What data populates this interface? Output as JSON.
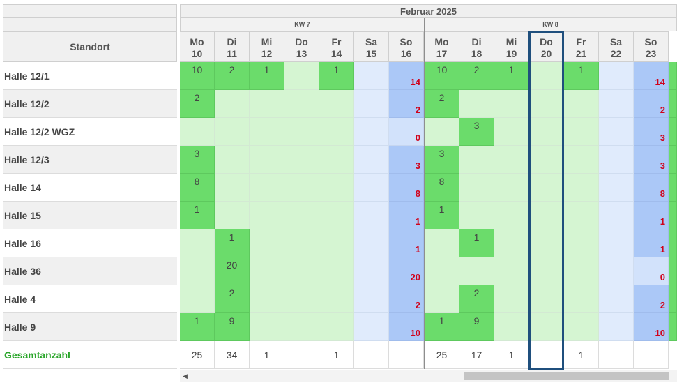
{
  "header": {
    "month": "Februar 2025",
    "weeks": [
      "KW 7",
      "KW 8"
    ],
    "standort_label": "Standort"
  },
  "days": [
    {
      "wd": "Mo",
      "d": "10"
    },
    {
      "wd": "Di",
      "d": "11"
    },
    {
      "wd": "Mi",
      "d": "12"
    },
    {
      "wd": "Do",
      "d": "13"
    },
    {
      "wd": "Fr",
      "d": "14"
    },
    {
      "wd": "Sa",
      "d": "15"
    },
    {
      "wd": "So",
      "d": "16"
    },
    {
      "wd": "Mo",
      "d": "17"
    },
    {
      "wd": "Di",
      "d": "18"
    },
    {
      "wd": "Mi",
      "d": "19"
    },
    {
      "wd": "Do",
      "d": "20"
    },
    {
      "wd": "Fr",
      "d": "21"
    },
    {
      "wd": "Sa",
      "d": "22"
    },
    {
      "wd": "So",
      "d": "23"
    }
  ],
  "rows": [
    {
      "label": "Halle 12/1",
      "values": [
        "10",
        "2",
        "1",
        "",
        "1",
        "",
        "",
        "10",
        "2",
        "1",
        "",
        "1",
        "",
        ""
      ],
      "sums": [
        "14",
        "14"
      ]
    },
    {
      "label": "Halle 12/2",
      "values": [
        "2",
        "",
        "",
        "",
        "",
        "",
        "",
        "2",
        "",
        "",
        "",
        "",
        "",
        ""
      ],
      "sums": [
        "2",
        "2"
      ]
    },
    {
      "label": "Halle 12/2 WGZ",
      "values": [
        "",
        "",
        "",
        "",
        "",
        "",
        "",
        "",
        "3",
        "",
        "",
        "",
        "",
        ""
      ],
      "sums": [
        "0",
        "3"
      ]
    },
    {
      "label": "Halle 12/3",
      "values": [
        "3",
        "",
        "",
        "",
        "",
        "",
        "",
        "3",
        "",
        "",
        "",
        "",
        "",
        ""
      ],
      "sums": [
        "3",
        "3"
      ]
    },
    {
      "label": "Halle 14",
      "values": [
        "8",
        "",
        "",
        "",
        "",
        "",
        "",
        "8",
        "",
        "",
        "",
        "",
        "",
        ""
      ],
      "sums": [
        "8",
        "8"
      ]
    },
    {
      "label": "Halle 15",
      "values": [
        "1",
        "",
        "",
        "",
        "",
        "",
        "",
        "1",
        "",
        "",
        "",
        "",
        "",
        ""
      ],
      "sums": [
        "1",
        "1"
      ]
    },
    {
      "label": "Halle 16",
      "values": [
        "",
        "1",
        "",
        "",
        "",
        "",
        "",
        "",
        "1",
        "",
        "",
        "",
        "",
        ""
      ],
      "sums": [
        "1",
        "1"
      ]
    },
    {
      "label": "Halle 36",
      "values": [
        "",
        "20",
        "",
        "",
        "",
        "",
        "",
        "",
        "",
        "",
        "",
        "",
        "",
        ""
      ],
      "sums": [
        "20",
        "0"
      ]
    },
    {
      "label": "Halle 4",
      "values": [
        "",
        "2",
        "",
        "",
        "",
        "",
        "",
        "",
        "2",
        "",
        "",
        "",
        "",
        ""
      ],
      "sums": [
        "2",
        "2"
      ]
    },
    {
      "label": "Halle 9",
      "values": [
        "1",
        "9",
        "",
        "",
        "",
        "",
        "",
        "1",
        "9",
        "",
        "",
        "",
        "",
        ""
      ],
      "sums": [
        "10",
        "10"
      ]
    }
  ],
  "total": {
    "label": "Gesamtanzahl",
    "values": [
      "25",
      "34",
      "1",
      "",
      "1",
      "",
      "",
      "25",
      "17",
      "1",
      "",
      "1",
      "",
      ""
    ]
  },
  "colors": {
    "accent": "#1f4f7d",
    "green": "#6bdc6b",
    "light_green": "#d5f5d2",
    "sum_red": "#d0021b",
    "total_label": "#2aa52a"
  },
  "selected_day": "Do 20"
}
